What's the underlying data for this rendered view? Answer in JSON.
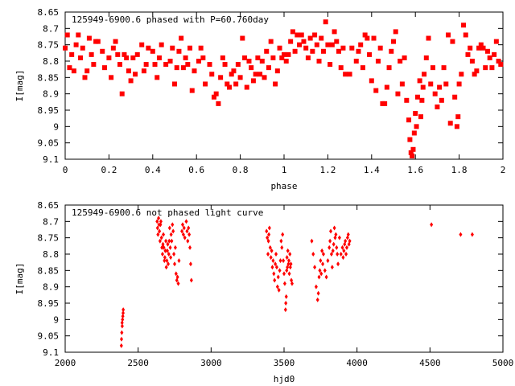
{
  "chart_data": [
    {
      "type": "scatter",
      "title": "125949-6900.6 phased with P=60.760day",
      "xlabel": "phase",
      "ylabel": "I[mag]",
      "xlim": [
        0,
        2
      ],
      "ylim": [
        9.1,
        8.65
      ],
      "y_inverted": true,
      "grid": false,
      "xticks": [
        "0",
        "0.2",
        "0.4",
        "0.6",
        "0.8",
        "1",
        "1.2",
        "1.4",
        "1.6",
        "1.8",
        "2"
      ],
      "yticks": [
        "8.65",
        "8.7",
        "8.75",
        "8.8",
        "8.85",
        "8.9",
        "8.95",
        "9",
        "9.05",
        "9.1"
      ],
      "marker_color": "#ff0000",
      "marker": "star",
      "points": [
        [
          0.0,
          8.76
        ],
        [
          0.01,
          8.72
        ],
        [
          0.02,
          8.82
        ],
        [
          0.03,
          8.78
        ],
        [
          0.04,
          8.83
        ],
        [
          0.05,
          8.75
        ],
        [
          0.06,
          8.72
        ],
        [
          0.07,
          8.79
        ],
        [
          0.08,
          8.76
        ],
        [
          0.09,
          8.85
        ],
        [
          0.1,
          8.83
        ],
        [
          0.11,
          8.73
        ],
        [
          0.12,
          8.78
        ],
        [
          0.13,
          8.81
        ],
        [
          0.14,
          8.74
        ],
        [
          0.15,
          8.74
        ],
        [
          0.17,
          8.77
        ],
        [
          0.18,
          8.82
        ],
        [
          0.2,
          8.79
        ],
        [
          0.21,
          8.85
        ],
        [
          0.22,
          8.76
        ],
        [
          0.23,
          8.74
        ],
        [
          0.24,
          8.78
        ],
        [
          0.25,
          8.81
        ],
        [
          0.26,
          8.9
        ],
        [
          0.27,
          8.78
        ],
        [
          0.28,
          8.79
        ],
        [
          0.29,
          8.83
        ],
        [
          0.3,
          8.86
        ],
        [
          0.31,
          8.79
        ],
        [
          0.32,
          8.84
        ],
        [
          0.33,
          8.78
        ],
        [
          0.35,
          8.75
        ],
        [
          0.36,
          8.83
        ],
        [
          0.37,
          8.81
        ],
        [
          0.38,
          8.76
        ],
        [
          0.4,
          8.77
        ],
        [
          0.41,
          8.81
        ],
        [
          0.42,
          8.85
        ],
        [
          0.43,
          8.79
        ],
        [
          0.44,
          8.75
        ],
        [
          0.46,
          8.81
        ],
        [
          0.48,
          8.8
        ],
        [
          0.49,
          8.76
        ],
        [
          0.5,
          8.87
        ],
        [
          0.51,
          8.82
        ],
        [
          0.52,
          8.77
        ],
        [
          0.53,
          8.73
        ],
        [
          0.54,
          8.82
        ],
        [
          0.55,
          8.79
        ],
        [
          0.56,
          8.81
        ],
        [
          0.57,
          8.76
        ],
        [
          0.58,
          8.89
        ],
        [
          0.59,
          8.83
        ],
        [
          0.61,
          8.8
        ],
        [
          0.62,
          8.76
        ],
        [
          0.63,
          8.79
        ],
        [
          0.64,
          8.87
        ],
        [
          0.66,
          8.81
        ],
        [
          0.67,
          8.84
        ],
        [
          0.68,
          8.91
        ],
        [
          0.69,
          8.9
        ],
        [
          0.7,
          8.93
        ],
        [
          0.71,
          8.85
        ],
        [
          0.72,
          8.79
        ],
        [
          0.73,
          8.81
        ],
        [
          0.74,
          8.87
        ],
        [
          0.75,
          8.88
        ],
        [
          0.76,
          8.84
        ],
        [
          0.77,
          8.83
        ],
        [
          0.78,
          8.87
        ],
        [
          0.79,
          8.81
        ],
        [
          0.8,
          8.85
        ],
        [
          0.81,
          8.73
        ],
        [
          0.82,
          8.79
        ],
        [
          0.83,
          8.88
        ],
        [
          0.84,
          8.8
        ],
        [
          0.85,
          8.82
        ],
        [
          0.86,
          8.86
        ],
        [
          0.87,
          8.84
        ],
        [
          0.88,
          8.79
        ],
        [
          0.89,
          8.84
        ],
        [
          0.9,
          8.8
        ],
        [
          0.91,
          8.85
        ],
        [
          0.92,
          8.77
        ],
        [
          0.93,
          8.82
        ],
        [
          0.94,
          8.74
        ],
        [
          0.95,
          8.79
        ],
        [
          0.96,
          8.87
        ],
        [
          0.97,
          8.83
        ],
        [
          0.98,
          8.76
        ],
        [
          0.99,
          8.79
        ],
        [
          1.0,
          8.78
        ],
        [
          1.01,
          8.8
        ],
        [
          1.02,
          8.78
        ],
        [
          1.03,
          8.74
        ],
        [
          1.04,
          8.71
        ],
        [
          1.05,
          8.77
        ],
        [
          1.06,
          8.72
        ],
        [
          1.07,
          8.75
        ],
        [
          1.08,
          8.72
        ],
        [
          1.09,
          8.74
        ],
        [
          1.1,
          8.76
        ],
        [
          1.11,
          8.79
        ],
        [
          1.12,
          8.73
        ],
        [
          1.13,
          8.77
        ],
        [
          1.14,
          8.72
        ],
        [
          1.15,
          8.75
        ],
        [
          1.16,
          8.8
        ],
        [
          1.17,
          8.73
        ],
        [
          1.18,
          8.77
        ],
        [
          1.19,
          8.68
        ],
        [
          1.2,
          8.75
        ],
        [
          1.21,
          8.81
        ],
        [
          1.22,
          8.75
        ],
        [
          1.23,
          8.71
        ],
        [
          1.24,
          8.74
        ],
        [
          1.25,
          8.77
        ],
        [
          1.26,
          8.82
        ],
        [
          1.27,
          8.76
        ],
        [
          1.28,
          8.84
        ],
        [
          1.3,
          8.84
        ],
        [
          1.31,
          8.76
        ],
        [
          1.33,
          8.8
        ],
        [
          1.34,
          8.77
        ],
        [
          1.35,
          8.75
        ],
        [
          1.36,
          8.82
        ],
        [
          1.37,
          8.72
        ],
        [
          1.38,
          8.73
        ],
        [
          1.39,
          8.78
        ],
        [
          1.4,
          8.86
        ],
        [
          1.41,
          8.73
        ],
        [
          1.42,
          8.89
        ],
        [
          1.43,
          8.8
        ],
        [
          1.44,
          8.76
        ],
        [
          1.45,
          8.93
        ],
        [
          1.46,
          8.93
        ],
        [
          1.47,
          8.88
        ],
        [
          1.48,
          8.82
        ],
        [
          1.49,
          8.77
        ],
        [
          1.5,
          8.74
        ],
        [
          1.51,
          8.71
        ],
        [
          1.52,
          8.9
        ],
        [
          1.53,
          8.8
        ],
        [
          1.54,
          8.87
        ],
        [
          1.55,
          8.79
        ],
        [
          1.56,
          8.92
        ],
        [
          1.57,
          8.98
        ],
        [
          1.575,
          9.04
        ],
        [
          1.58,
          9.08
        ],
        [
          1.585,
          9.09
        ],
        [
          1.59,
          9.07
        ],
        [
          1.595,
          9.02
        ],
        [
          1.6,
          8.96
        ],
        [
          1.605,
          9.0
        ],
        [
          1.61,
          8.91
        ],
        [
          1.62,
          8.86
        ],
        [
          1.625,
          8.97
        ],
        [
          1.63,
          8.92
        ],
        [
          1.635,
          8.88
        ],
        [
          1.64,
          8.84
        ],
        [
          1.65,
          8.79
        ],
        [
          1.66,
          8.73
        ],
        [
          1.67,
          8.87
        ],
        [
          1.68,
          8.82
        ],
        [
          1.69,
          8.9
        ],
        [
          1.7,
          8.94
        ],
        [
          1.71,
          8.88
        ],
        [
          1.72,
          8.92
        ],
        [
          1.73,
          8.82
        ],
        [
          1.74,
          8.87
        ],
        [
          1.75,
          8.72
        ],
        [
          1.76,
          8.99
        ],
        [
          1.77,
          8.74
        ],
        [
          1.78,
          8.91
        ],
        [
          1.79,
          9.0
        ],
        [
          1.795,
          8.97
        ],
        [
          1.8,
          8.87
        ],
        [
          1.81,
          8.84
        ],
        [
          1.82,
          8.69
        ],
        [
          1.83,
          8.72
        ],
        [
          1.84,
          8.78
        ],
        [
          1.85,
          8.76
        ],
        [
          1.86,
          8.8
        ],
        [
          1.87,
          8.84
        ],
        [
          1.88,
          8.83
        ],
        [
          1.89,
          8.76
        ],
        [
          1.9,
          8.75
        ],
        [
          1.91,
          8.76
        ],
        [
          1.92,
          8.82
        ],
        [
          1.93,
          8.77
        ],
        [
          1.94,
          8.79
        ],
        [
          1.95,
          8.82
        ],
        [
          1.96,
          8.78
        ],
        [
          1.97,
          8.74
        ],
        [
          1.98,
          8.8
        ],
        [
          1.99,
          8.81
        ]
      ]
    },
    {
      "type": "scatter",
      "title": "125949-6900.6 not phased light curve",
      "xlabel": "hjd0",
      "ylabel": "I[mag]",
      "xlim": [
        2000,
        5000
      ],
      "ylim": [
        9.1,
        8.65
      ],
      "y_inverted": true,
      "grid": false,
      "xticks": [
        "2000",
        "2500",
        "3000",
        "3500",
        "4000",
        "4500",
        "5000"
      ],
      "yticks": [
        "8.65",
        "8.7",
        "8.75",
        "8.8",
        "8.85",
        "8.9",
        "8.95",
        "9",
        "9.05",
        "9.1"
      ],
      "marker_color": "#ff0000",
      "marker": "diamond",
      "points": [
        [
          2385,
          9.08
        ],
        [
          2386,
          9.06
        ],
        [
          2388,
          9.04
        ],
        [
          2390,
          9.01
        ],
        [
          2391,
          9.02
        ],
        [
          2393,
          9.0
        ],
        [
          2395,
          8.99
        ],
        [
          2397,
          8.98
        ],
        [
          2398,
          8.97
        ],
        [
          2630,
          8.7
        ],
        [
          2633,
          8.72
        ],
        [
          2636,
          8.74
        ],
        [
          2640,
          8.69
        ],
        [
          2643,
          8.71
        ],
        [
          2646,
          8.73
        ],
        [
          2650,
          8.76
        ],
        [
          2653,
          8.71
        ],
        [
          2656,
          8.7
        ],
        [
          2660,
          8.75
        ],
        [
          2663,
          8.78
        ],
        [
          2667,
          8.8
        ],
        [
          2670,
          8.77
        ],
        [
          2673,
          8.74
        ],
        [
          2676,
          8.78
        ],
        [
          2680,
          8.82
        ],
        [
          2683,
          8.81
        ],
        [
          2686,
          8.79
        ],
        [
          2690,
          8.76
        ],
        [
          2693,
          8.84
        ],
        [
          2697,
          8.82
        ],
        [
          2700,
          8.79
        ],
        [
          2703,
          8.77
        ],
        [
          2706,
          8.83
        ],
        [
          2710,
          8.8
        ],
        [
          2713,
          8.76
        ],
        [
          2716,
          8.72
        ],
        [
          2720,
          8.78
        ],
        [
          2723,
          8.81
        ],
        [
          2726,
          8.74
        ],
        [
          2730,
          8.76
        ],
        [
          2735,
          8.71
        ],
        [
          2740,
          8.73
        ],
        [
          2745,
          8.8
        ],
        [
          2750,
          8.83
        ],
        [
          2755,
          8.78
        ],
        [
          2760,
          8.86
        ],
        [
          2765,
          8.88
        ],
        [
          2770,
          8.87
        ],
        [
          2775,
          8.89
        ],
        [
          2780,
          8.82
        ],
        [
          2800,
          8.73
        ],
        [
          2805,
          8.71
        ],
        [
          2810,
          8.74
        ],
        [
          2815,
          8.72
        ],
        [
          2820,
          8.75
        ],
        [
          2830,
          8.7
        ],
        [
          2835,
          8.73
        ],
        [
          2840,
          8.76
        ],
        [
          2845,
          8.72
        ],
        [
          2850,
          8.74
        ],
        [
          2855,
          8.78
        ],
        [
          2860,
          8.83
        ],
        [
          2865,
          8.88
        ],
        [
          3380,
          8.73
        ],
        [
          3385,
          8.75
        ],
        [
          3390,
          8.8
        ],
        [
          3393,
          8.76
        ],
        [
          3396,
          8.74
        ],
        [
          3400,
          8.72
        ],
        [
          3405,
          8.78
        ],
        [
          3410,
          8.81
        ],
        [
          3415,
          8.79
        ],
        [
          3420,
          8.84
        ],
        [
          3425,
          8.82
        ],
        [
          3430,
          8.86
        ],
        [
          3435,
          8.88
        ],
        [
          3440,
          8.83
        ],
        [
          3445,
          8.8
        ],
        [
          3450,
          8.84
        ],
        [
          3455,
          8.9
        ],
        [
          3460,
          8.87
        ],
        [
          3465,
          8.91
        ],
        [
          3470,
          8.85
        ],
        [
          3475,
          8.82
        ],
        [
          3480,
          8.76
        ],
        [
          3485,
          8.78
        ],
        [
          3490,
          8.74
        ],
        [
          3495,
          8.82
        ],
        [
          3500,
          8.86
        ],
        [
          3505,
          8.89
        ],
        [
          3510,
          8.97
        ],
        [
          3512,
          8.95
        ],
        [
          3515,
          8.93
        ],
        [
          3518,
          8.85
        ],
        [
          3520,
          8.81
        ],
        [
          3523,
          8.84
        ],
        [
          3526,
          8.79
        ],
        [
          3530,
          8.83
        ],
        [
          3533,
          8.82
        ],
        [
          3536,
          8.86
        ],
        [
          3540,
          8.8
        ],
        [
          3543,
          8.84
        ],
        [
          3547,
          8.83
        ],
        [
          3550,
          8.88
        ],
        [
          3555,
          8.89
        ],
        [
          3690,
          8.76
        ],
        [
          3700,
          8.8
        ],
        [
          3710,
          8.84
        ],
        [
          3720,
          8.9
        ],
        [
          3730,
          8.94
        ],
        [
          3735,
          8.92
        ],
        [
          3740,
          8.87
        ],
        [
          3745,
          8.85
        ],
        [
          3750,
          8.82
        ],
        [
          3755,
          8.86
        ],
        [
          3760,
          8.79
        ],
        [
          3765,
          8.83
        ],
        [
          3770,
          8.8
        ],
        [
          3780,
          8.85
        ],
        [
          3790,
          8.87
        ],
        [
          3800,
          8.82
        ],
        [
          3810,
          8.78
        ],
        [
          3815,
          8.76
        ],
        [
          3820,
          8.73
        ],
        [
          3825,
          8.8
        ],
        [
          3830,
          8.84
        ],
        [
          3835,
          8.79
        ],
        [
          3840,
          8.77
        ],
        [
          3845,
          8.72
        ],
        [
          3850,
          8.75
        ],
        [
          3855,
          8.74
        ],
        [
          3860,
          8.78
        ],
        [
          3865,
          8.8
        ],
        [
          3870,
          8.83
        ],
        [
          3880,
          8.75
        ],
        [
          3890,
          8.8
        ],
        [
          3900,
          8.78
        ],
        [
          3905,
          8.81
        ],
        [
          3910,
          8.79
        ],
        [
          3915,
          8.77
        ],
        [
          3920,
          8.76
        ],
        [
          3925,
          8.8
        ],
        [
          3930,
          8.78
        ],
        [
          3935,
          8.75
        ],
        [
          3940,
          8.74
        ],
        [
          3945,
          8.77
        ],
        [
          3950,
          8.76
        ],
        [
          4510,
          8.71
        ],
        [
          4710,
          8.74
        ],
        [
          4790,
          8.74
        ]
      ]
    }
  ]
}
